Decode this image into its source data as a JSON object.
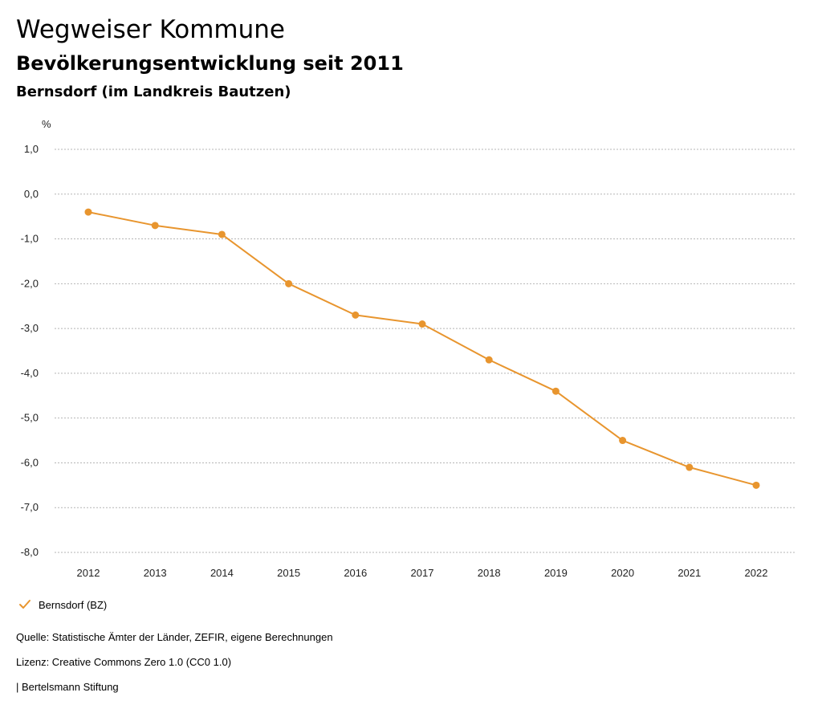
{
  "header": {
    "title": "Wegweiser Kommune",
    "subtitle": "Bevölkerungsentwicklung seit 2011",
    "region": "Bernsdorf (im Landkreis Bautzen)"
  },
  "chart_data": {
    "type": "line",
    "unit": "%",
    "x": [
      "2012",
      "2013",
      "2014",
      "2015",
      "2016",
      "2017",
      "2018",
      "2019",
      "2020",
      "2021",
      "2022"
    ],
    "series": [
      {
        "name": "Bernsdorf (BZ)",
        "color": "#e8952e",
        "values": [
          -0.4,
          -0.7,
          -0.9,
          -2.0,
          -2.7,
          -2.9,
          -3.7,
          -4.4,
          -5.5,
          -6.1,
          -6.5
        ]
      }
    ],
    "ylim": [
      -8.0,
      1.0
    ],
    "yticks": [
      1.0,
      0.0,
      -1.0,
      -2.0,
      -3.0,
      -4.0,
      -5.0,
      -6.0,
      -7.0,
      -8.0
    ],
    "ytick_labels": [
      "1,0",
      "0,0",
      "-1,0",
      "-2,0",
      "-3,0",
      "-4,0",
      "-5,0",
      "-6,0",
      "-7,0",
      "-8,0"
    ],
    "grid": true,
    "legend_position": "bottom-left"
  },
  "legend": {
    "label": "Bernsdorf (BZ)",
    "icon": "check-icon",
    "color": "#e8952e"
  },
  "footer": {
    "source": "Quelle: Statistische Ämter der Länder, ZEFIR, eigene Berechnungen",
    "license": "Lizenz: Creative Commons Zero 1.0 (CC0 1.0)",
    "publisher": "| Bertelsmann Stiftung"
  }
}
